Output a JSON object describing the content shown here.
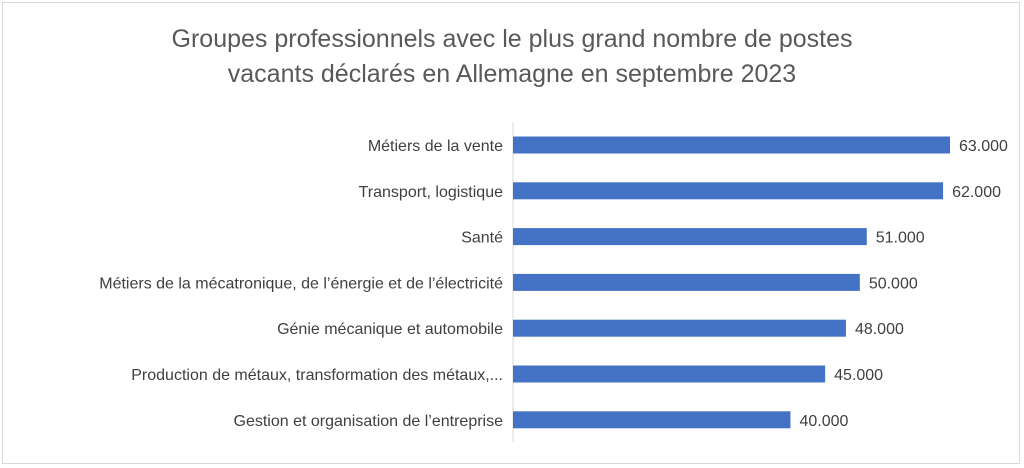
{
  "chart_data": {
    "type": "bar",
    "orientation": "horizontal",
    "title_lines": [
      "Groupes professionnels avec le plus grand nombre de postes",
      "vacants déclarés en Allemagne en septembre 2023"
    ],
    "categories": [
      "Métiers de la vente",
      "Transport, logistique",
      "Santé",
      "Métiers de la mécatronique, de l’énergie et de l’électricité",
      "Génie mécanique et automobile",
      "Production de métaux, transformation des métaux,...",
      "Gestion et organisation de l’entreprise"
    ],
    "values": [
      63000,
      62000,
      51000,
      50000,
      48000,
      45000,
      40000
    ],
    "value_labels": [
      "63.000",
      "62.000",
      "51.000",
      "50.000",
      "48.000",
      "45.000",
      "40.000"
    ],
    "xlim": [
      0,
      63000
    ],
    "grid": false,
    "legend": "none",
    "bar_color": "#4472c4"
  }
}
